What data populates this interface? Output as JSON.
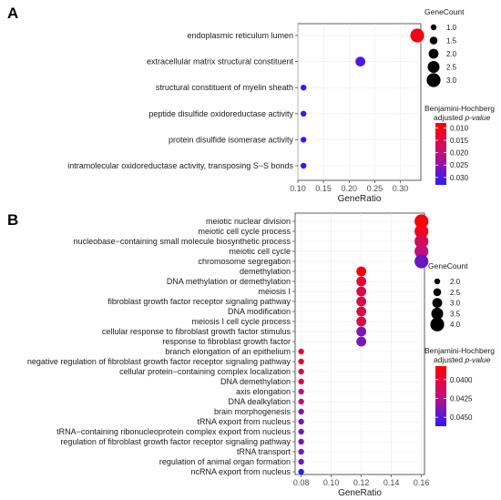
{
  "chart_data": [
    {
      "panel": "A",
      "type": "scatter",
      "xlabel": "GeneRatio",
      "xlim": [
        0.1,
        0.34
      ],
      "xticks": [
        "0.10",
        "0.15",
        "0.20",
        "0.25",
        "0.30"
      ],
      "categories": [
        "endoplasmic reticulum lumen",
        "extracellular matrix structural constituent",
        "structural constituent of myelin sheath",
        "peptide disulfide oxidoreductase activity",
        "protein disulfide isomerase activity",
        "intramolecular oxidoreductase activity, transposing S−S bonds"
      ],
      "points": [
        {
          "x": 0.333,
          "count": 3,
          "padj": 0.01
        },
        {
          "x": 0.222,
          "count": 2,
          "padj": 0.03
        },
        {
          "x": 0.111,
          "count": 1,
          "padj": 0.032
        },
        {
          "x": 0.111,
          "count": 1,
          "padj": 0.032
        },
        {
          "x": 0.111,
          "count": 1,
          "padj": 0.032
        },
        {
          "x": 0.111,
          "count": 1,
          "padj": 0.032
        }
      ],
      "size_legend": {
        "title": "GeneCount",
        "values": [
          "1.0",
          "1.5",
          "2.0",
          "2.5",
          "3.0"
        ]
      },
      "color_legend": {
        "title_line1": "Benjamini-Hochberg",
        "title_line2": "adjusted ",
        "title_italic": "p-value",
        "ticks": [
          "0.010",
          "0.015",
          "0.020",
          "0.025",
          "0.030"
        ],
        "range": [
          0.008,
          0.033
        ]
      },
      "colors": {
        "low": "#ff0000",
        "high": "#2a1bff"
      }
    },
    {
      "panel": "B",
      "type": "scatter",
      "xlabel": "GeneRatio",
      "xlim": [
        0.076,
        0.162
      ],
      "xticks": [
        "0.08",
        "0.10",
        "0.12",
        "0.14",
        "0.16"
      ],
      "categories": [
        "meiotic nuclear division",
        "meiotic cell cycle process",
        "nucleobase−containing small molecule biosynthetic process",
        "meiotic cell cycle",
        "chromosome segregation",
        "demethylation",
        "DNA methylation or demethylation",
        "meiosis I",
        "fibroblast growth factor receptor signaling pathway",
        "DNA modification",
        "meiosis I cell cycle process",
        "cellular response to fibroblast growth factor stimulus",
        "response to fibroblast growth factor",
        "branch elongation of an epithelium",
        "negative regulation of fibroblast growth factor receptor signaling pathway",
        "cellular protein−containing complex localization",
        "DNA demethylation",
        "axis elongation",
        "DNA dealkylation",
        "brain morphogenesis",
        "tRNA export from nucleus",
        "tRNA−containing ribonucleoprotein complex export from nucleus",
        "regulation of fibroblast growth factor receptor signaling pathway",
        "tRNA transport",
        "regulation of animal organ formation",
        "ncRNA export from nucleus"
      ],
      "points": [
        {
          "x": 0.16,
          "count": 4,
          "padj": 0.0385
        },
        {
          "x": 0.16,
          "count": 4,
          "padj": 0.039
        },
        {
          "x": 0.16,
          "count": 4,
          "padj": 0.041
        },
        {
          "x": 0.16,
          "count": 4,
          "padj": 0.042
        },
        {
          "x": 0.16,
          "count": 4,
          "padj": 0.0445
        },
        {
          "x": 0.12,
          "count": 3,
          "padj": 0.0385
        },
        {
          "x": 0.12,
          "count": 3,
          "padj": 0.04
        },
        {
          "x": 0.12,
          "count": 3,
          "padj": 0.0405
        },
        {
          "x": 0.12,
          "count": 3,
          "padj": 0.0405
        },
        {
          "x": 0.12,
          "count": 3,
          "padj": 0.0405
        },
        {
          "x": 0.12,
          "count": 3,
          "padj": 0.0405
        },
        {
          "x": 0.12,
          "count": 3,
          "padj": 0.044
        },
        {
          "x": 0.12,
          "count": 3,
          "padj": 0.044
        },
        {
          "x": 0.08,
          "count": 2,
          "padj": 0.04
        },
        {
          "x": 0.08,
          "count": 2,
          "padj": 0.04
        },
        {
          "x": 0.08,
          "count": 2,
          "padj": 0.0405
        },
        {
          "x": 0.08,
          "count": 2,
          "padj": 0.0405
        },
        {
          "x": 0.08,
          "count": 2,
          "padj": 0.042
        },
        {
          "x": 0.08,
          "count": 2,
          "padj": 0.042
        },
        {
          "x": 0.08,
          "count": 2,
          "padj": 0.044
        },
        {
          "x": 0.08,
          "count": 2,
          "padj": 0.044
        },
        {
          "x": 0.08,
          "count": 2,
          "padj": 0.044
        },
        {
          "x": 0.08,
          "count": 2,
          "padj": 0.044
        },
        {
          "x": 0.08,
          "count": 2,
          "padj": 0.044
        },
        {
          "x": 0.08,
          "count": 2,
          "padj": 0.044
        },
        {
          "x": 0.08,
          "count": 2,
          "padj": 0.046
        }
      ],
      "size_legend": {
        "title": "GeneCount",
        "values": [
          "2.0",
          "2.5",
          "3.0",
          "3.5",
          "4.0"
        ]
      },
      "color_legend": {
        "title_line1": "Benjamini-Hochberg",
        "title_line2": "adjusted ",
        "title_italic": "p-value",
        "ticks": [
          "0.0400",
          "0.0425",
          "0.0450"
        ],
        "range": [
          0.0382,
          0.0462
        ]
      },
      "colors": {
        "low": "#ff0000",
        "high": "#2a1bff"
      }
    }
  ]
}
